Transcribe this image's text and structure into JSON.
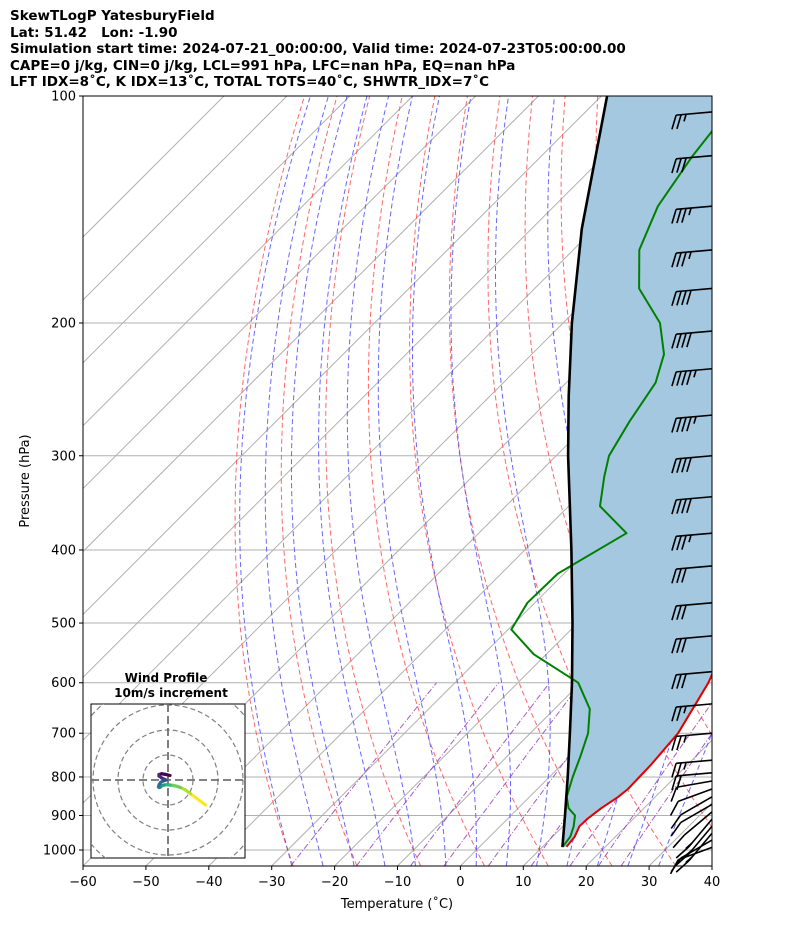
{
  "header": {
    "line1": "SkewTLogP YatesburyField",
    "line2": "Lat: 51.42   Lon: -1.90",
    "line3": "Simulation start time: 2024-07-21_00:00:00, Valid time: 2024-07-23T05:00:00.00",
    "line4": "CAPE=0 j/kg, CIN=0 j/kg, LCL=991 hPa, LFC=nan hPa, EQ=nan hPa",
    "line5": "LFT IDX=8˚C, K IDX=13˚C, TOTAL TOTS=40˚C, SHWTR_IDX=7˚C"
  },
  "chart_data": [
    {
      "type": "line",
      "subtype": "skew-t log-p",
      "xlabel": "Temperature (˚C)",
      "ylabel": "Pressure (hPa)",
      "xlim": [
        -60,
        40
      ],
      "ylim": [
        1050,
        100
      ],
      "yscale": "log",
      "skew": "45 degrees",
      "xticks": [
        "−60",
        "−50",
        "−40",
        "−30",
        "−20",
        "−10",
        "0",
        "10",
        "20",
        "30",
        "40"
      ],
      "yticks": [
        "100",
        "200",
        "300",
        "400",
        "500",
        "600",
        "700",
        "800",
        "900",
        "1000"
      ],
      "grid": true,
      "shading": "area between temperature and parcel profile (CAPE/CIN), color #a5c8e1",
      "series": [
        {
          "role": "temperature",
          "color": "#e00000",
          "pressure": [
            990,
            960,
            930,
            910,
            880,
            850,
            830,
            800,
            770,
            700,
            600,
            520,
            460,
            400,
            350,
            320,
            300,
            250,
            220,
            200,
            180,
            160,
            140,
            120,
            100
          ],
          "values": [
            13.8,
            13.5,
            12.6,
            12.7,
            13.2,
            14.1,
            14.4,
            14.3,
            14.2,
            13.5,
            10.3,
            6.1,
            2.2,
            -3.4,
            -8.4,
            -12.4,
            -15.3,
            -22.0,
            -28.0,
            -31.7,
            -34.8,
            -38.8,
            -45.2,
            -51.5,
            -58.9
          ]
        },
        {
          "role": "dewpoint",
          "color": "#008000",
          "pressure": [
            990,
            960,
            930,
            900,
            880,
            850,
            800,
            750,
            700,
            650,
            600,
            550,
            510,
            470,
            430,
            380,
            350,
            320,
            300,
            270,
            240,
            220,
            200,
            180,
            160,
            140,
            120,
            100
          ],
          "values": [
            13.2,
            12.8,
            11.7,
            10.2,
            8.0,
            5.9,
            3.7,
            1.6,
            -0.8,
            -4.4,
            -10.4,
            -22.0,
            -29.5,
            -31.2,
            -31.0,
            -26.5,
            -35.0,
            -39.0,
            -41.6,
            -43.8,
            -45.8,
            -49.0,
            -54.6,
            -63.4,
            -69.5,
            -73.5,
            -76.0,
            -78.0
          ]
        },
        {
          "role": "parcel profile",
          "color": "#000000",
          "pressure": [
            991,
            900,
            800,
            700,
            600,
            500,
            400,
            300,
            250,
            200,
            150,
            100
          ],
          "values": [
            13.2,
            8.6,
            2.9,
            -3.7,
            -11.4,
            -20.8,
            -32.6,
            -48.1,
            -57.5,
            -68.6,
            -82.0,
            -99.1
          ]
        }
      ],
      "reference_lines": {
        "dry_adiabats": {
          "color": "#ff4d4d",
          "style": "dashed"
        },
        "moist_adiabats": {
          "color": "#4d4dff",
          "style": "dashed"
        },
        "mixing_ratio_lines": {
          "color": "#9a3db8",
          "style": "dash-dot"
        }
      },
      "wind_barbs": {
        "color": "#000000",
        "x_position": "right edge",
        "pressure": [
          992,
          970,
          950,
          930,
          910,
          890,
          870,
          850,
          830,
          810,
          790,
          760,
          700,
          640,
          580,
          520,
          470,
          420,
          380,
          340,
          300,
          265,
          230,
          205,
          180,
          160,
          140,
          120,
          105
        ],
        "speed_kt": [
          10,
          10,
          15,
          15,
          15,
          10,
          10,
          10,
          10,
          10,
          20,
          25,
          25,
          25,
          30,
          30,
          30,
          30,
          35,
          40,
          40,
          45,
          45,
          40,
          40,
          35,
          35,
          30,
          25
        ],
        "direction_deg": [
          290,
          300,
          320,
          320,
          320,
          310,
          300,
          300,
          290,
          280,
          275,
          275,
          275,
          275,
          275,
          275,
          275,
          275,
          275,
          275,
          275,
          275,
          275,
          275,
          275,
          275,
          275,
          275,
          275
        ]
      }
    },
    {
      "type": "scatter",
      "subtype": "hodograph",
      "title": "Wind Profile",
      "subtitle": "10m/s increment",
      "ring_increment_ms": 10,
      "rings": 3,
      "grid": "dashed axes and rings",
      "colormap": "viridis by height (low level yellow/green to upper level purple)",
      "u": [
        15,
        13,
        11,
        9,
        7,
        5,
        3.5,
        2,
        0.8,
        -0.5,
        -1.6,
        -2.5,
        -3.0,
        -3.5,
        -3.8,
        -3.6,
        -3.0,
        -2.2,
        -1.5,
        -0.8,
        -2.5,
        -3.6,
        -3.6,
        -2.6,
        -0.8,
        0.8
      ],
      "v": [
        -10,
        -8.5,
        -7,
        -5.5,
        -4,
        -3,
        -2.5,
        -2.2,
        -2.0,
        -1.9,
        -2.0,
        -2.3,
        -2.8,
        -3.0,
        -2.8,
        -2.0,
        -1.0,
        -0.5,
        -0.2,
        0.0,
        0.8,
        1.6,
        2.2,
        2.5,
        2.2,
        1.8
      ]
    }
  ]
}
